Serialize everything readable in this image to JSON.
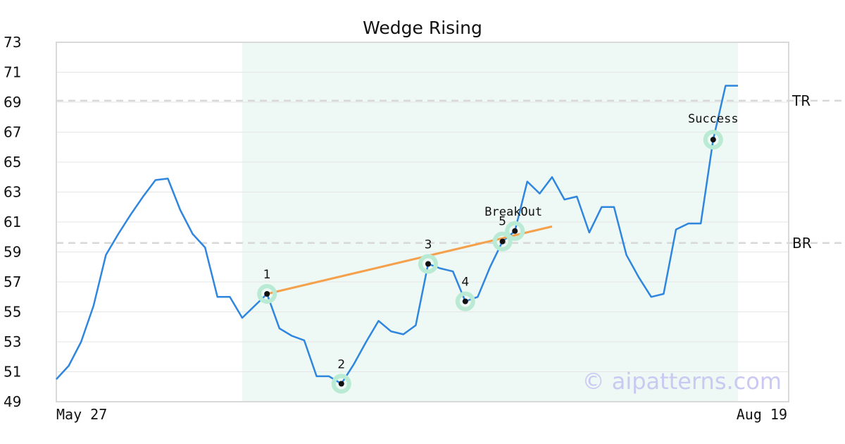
{
  "chart_data": {
    "type": "line",
    "title": "Wedge Rising",
    "xlabel": "",
    "ylabel": "",
    "x_tick_labels": [
      "May 27",
      "Aug 19"
    ],
    "yticks": [
      49,
      51,
      53,
      55,
      57,
      59,
      61,
      63,
      65,
      67,
      69,
      71,
      73
    ],
    "ylim": [
      49,
      73
    ],
    "grid": true,
    "series": [
      {
        "color": "#2e86de",
        "values": [
          50.5,
          51.4,
          53.0,
          55.4,
          58.8,
          60.2,
          61.5,
          62.7,
          63.8,
          63.9,
          61.8,
          60.2,
          59.3,
          56.0,
          56.0,
          54.6,
          55.4,
          56.2,
          53.9,
          53.4,
          53.1,
          50.7,
          50.7,
          50.2,
          51.5,
          53.0,
          54.4,
          53.7,
          53.5,
          54.1,
          58.2,
          57.9,
          57.7,
          55.7,
          56.0,
          58.0,
          59.7,
          60.4,
          63.7,
          62.9,
          64.0,
          62.5,
          62.7,
          60.3,
          62.0,
          62.0,
          58.8,
          57.3,
          56.0,
          56.2,
          60.5,
          60.9,
          60.9,
          66.5,
          70.1,
          70.1
        ]
      }
    ],
    "shaded_region": {
      "from_index": 15,
      "to_index": 55,
      "color": "#e8f5f0"
    },
    "trend_line": {
      "color": "#f5a04a",
      "from": {
        "index": 17,
        "value": 56.2
      },
      "to": {
        "index": 40,
        "value": 60.7
      }
    },
    "reference_lines": [
      {
        "label": "TR",
        "value": 69.1
      },
      {
        "label": "BR",
        "value": 59.6
      }
    ],
    "points": [
      {
        "label": "1",
        "index": 17,
        "value": 56.2
      },
      {
        "label": "2",
        "index": 23,
        "value": 50.2
      },
      {
        "label": "3",
        "index": 30,
        "value": 58.2
      },
      {
        "label": "4",
        "index": 33,
        "value": 55.7
      },
      {
        "label": "5",
        "index": 36,
        "value": 59.7
      },
      {
        "label": "BreakOut",
        "index": 37,
        "value": 60.4
      },
      {
        "label": "Success",
        "index": 53,
        "value": 66.5
      }
    ],
    "watermark": "© aipatterns.com"
  }
}
